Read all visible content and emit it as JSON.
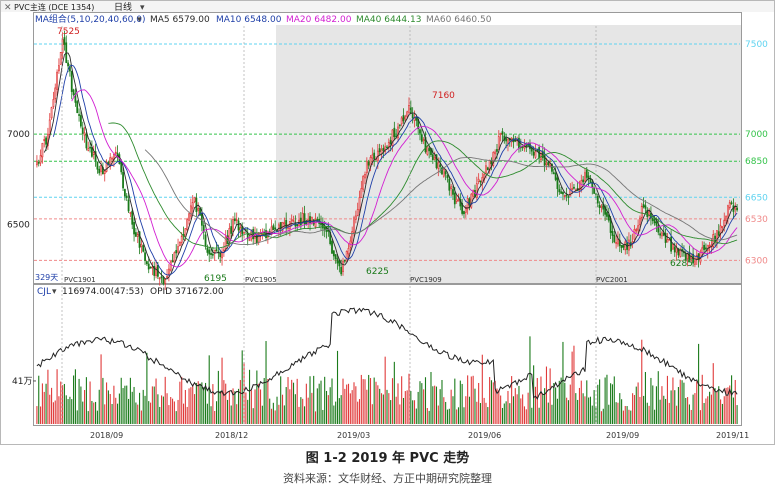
{
  "header": {
    "symbol": "PVC主连 (DCE 1354)",
    "period": "日线",
    "ma_label": "MA组合(5,10,20,40,60,0)",
    "ma_values": [
      {
        "name": "MA5",
        "text": "MA5 6579.00",
        "color": "#2a2a2a"
      },
      {
        "name": "MA10",
        "text": "MA10 6548.00",
        "color": "#1f3fa8"
      },
      {
        "name": "MA20",
        "text": "MA20 6482.00",
        "color": "#d21fd2"
      },
      {
        "name": "MA40",
        "text": "MA40 6444.13",
        "color": "#2e8b2e"
      },
      {
        "name": "MA60",
        "text": "MA60 6460.50",
        "color": "#777777"
      }
    ]
  },
  "colors": {
    "up": "#e03a3a",
    "down": "#1a7a1a",
    "highlight_bg": "#e6e6e6",
    "grid_cyan": "#5fd3f0",
    "grid_green": "#34c34a",
    "grid_red": "#f08a8a",
    "oi_line": "#222222"
  },
  "chart_data": {
    "type": "candlestick",
    "price_axis": {
      "ylim": [
        6180,
        7600
      ],
      "ticks": [
        6500,
        7000
      ]
    },
    "reference_levels": [
      {
        "value": 7500,
        "label": "7500",
        "color": "cyan"
      },
      {
        "value": 7000,
        "label": "7000",
        "color": "green"
      },
      {
        "value": 6850,
        "label": "6850",
        "color": "green"
      },
      {
        "value": 6650,
        "label": "6650",
        "color": "cyan"
      },
      {
        "value": 6530,
        "label": "6530",
        "color": "red"
      },
      {
        "value": 6300,
        "label": "6300",
        "color": "red"
      }
    ],
    "annotations": [
      {
        "text": "7525",
        "kind": "high"
      },
      {
        "text": "7160",
        "kind": "high"
      },
      {
        "text": "6195",
        "kind": "low"
      },
      {
        "text": "6225",
        "kind": "low"
      },
      {
        "text": "6285",
        "kind": "low"
      }
    ],
    "anchors": [
      {
        "t": 0,
        "p": 6850
      },
      {
        "t": 6,
        "p": 7000
      },
      {
        "t": 12,
        "p": 7380
      },
      {
        "t": 14,
        "p": 7525
      },
      {
        "t": 20,
        "p": 7220
      },
      {
        "t": 28,
        "p": 6920
      },
      {
        "t": 36,
        "p": 6780
      },
      {
        "t": 43,
        "p": 6900
      },
      {
        "t": 52,
        "p": 6500
      },
      {
        "t": 62,
        "p": 6260
      },
      {
        "t": 70,
        "p": 6195
      },
      {
        "t": 78,
        "p": 6400
      },
      {
        "t": 86,
        "p": 6650
      },
      {
        "t": 92,
        "p": 6380
      },
      {
        "t": 100,
        "p": 6320
      },
      {
        "t": 108,
        "p": 6520
      },
      {
        "t": 118,
        "p": 6420
      },
      {
        "t": 130,
        "p": 6480
      },
      {
        "t": 140,
        "p": 6520
      },
      {
        "t": 150,
        "p": 6540
      },
      {
        "t": 158,
        "p": 6460
      },
      {
        "t": 166,
        "p": 6225
      },
      {
        "t": 172,
        "p": 6460
      },
      {
        "t": 180,
        "p": 6850
      },
      {
        "t": 190,
        "p": 6930
      },
      {
        "t": 198,
        "p": 7050
      },
      {
        "t": 203,
        "p": 7160
      },
      {
        "t": 210,
        "p": 6960
      },
      {
        "t": 220,
        "p": 6820
      },
      {
        "t": 232,
        "p": 6560
      },
      {
        "t": 242,
        "p": 6740
      },
      {
        "t": 254,
        "p": 7000
      },
      {
        "t": 266,
        "p": 6930
      },
      {
        "t": 278,
        "p": 6840
      },
      {
        "t": 288,
        "p": 6660
      },
      {
        "t": 300,
        "p": 6760
      },
      {
        "t": 308,
        "p": 6600
      },
      {
        "t": 316,
        "p": 6400
      },
      {
        "t": 324,
        "p": 6380
      },
      {
        "t": 330,
        "p": 6600
      },
      {
        "t": 340,
        "p": 6440
      },
      {
        "t": 350,
        "p": 6330
      },
      {
        "t": 358,
        "p": 6285
      },
      {
        "t": 364,
        "p": 6360
      },
      {
        "t": 372,
        "p": 6440
      },
      {
        "t": 378,
        "p": 6620
      },
      {
        "t": 382,
        "p": 6580
      }
    ],
    "contracts": [
      "PVC1901",
      "PVC1905",
      "PVC1909",
      "PVC2001"
    ],
    "date_ticks": [
      "2018/09",
      "2018/12",
      "2019/03",
      "2019/06",
      "2019/09",
      "2019/11"
    ],
    "bar_count_label": "329天",
    "volume": {
      "label": "CJL",
      "value_text": "116974.00(47:53)",
      "oi_text": "OPID 371672.00",
      "ylim_wan": [
        0,
        120
      ],
      "tick_label": "41万",
      "tick_value_wan": 41
    }
  },
  "caption": {
    "title": "图 1-2 2019 年 PVC 走势",
    "source": "资料来源：文华财经、方正中期研究院整理"
  }
}
